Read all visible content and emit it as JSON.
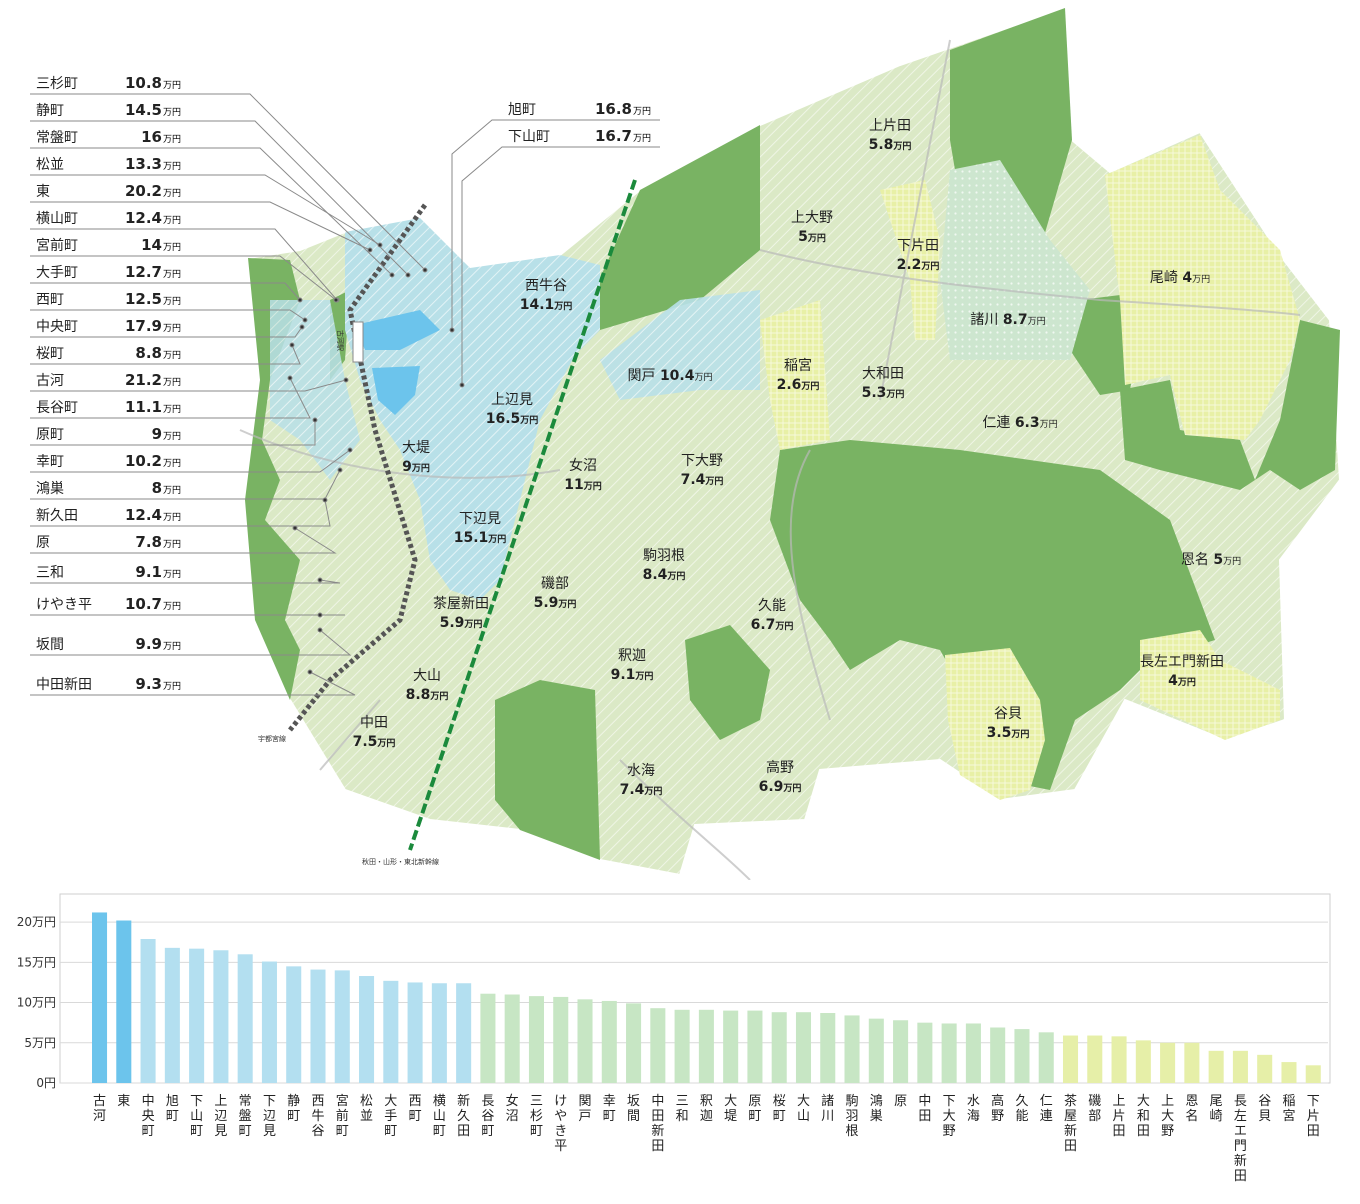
{
  "unit": "万円",
  "colors": {
    "green_dark": "#79b363",
    "green_light": "#dbe9c6",
    "yellow": "#e8f0a6",
    "blue_light": "#b8e0e8",
    "blue": "#6cc4ec",
    "line": "#9a9a9a"
  },
  "map_labels": [
    {
      "name": "上片田",
      "value": "5.8"
    },
    {
      "name": "上大野",
      "value": "5"
    },
    {
      "name": "下片田",
      "value": "2.2"
    },
    {
      "name": "尾崎",
      "value": "4"
    },
    {
      "name": "諸川",
      "value": "8.7"
    },
    {
      "name": "稲宮",
      "value": "2.6"
    },
    {
      "name": "大和田",
      "value": "5.3"
    },
    {
      "name": "仁連",
      "value": "6.3"
    },
    {
      "name": "西牛谷",
      "value": "14.1"
    },
    {
      "name": "関戸",
      "value": "10.4"
    },
    {
      "name": "上辺見",
      "value": "16.5"
    },
    {
      "name": "大堤",
      "value": "9"
    },
    {
      "name": "女沼",
      "value": "11"
    },
    {
      "name": "下大野",
      "value": "7.4"
    },
    {
      "name": "下辺見",
      "value": "15.1"
    },
    {
      "name": "駒羽根",
      "value": "8.4"
    },
    {
      "name": "磯部",
      "value": "5.9"
    },
    {
      "name": "茶屋新田",
      "value": "5.9"
    },
    {
      "name": "久能",
      "value": "6.7"
    },
    {
      "name": "恩名",
      "value": "5"
    },
    {
      "name": "釈迦",
      "value": "9.1"
    },
    {
      "name": "大山",
      "value": "8.8"
    },
    {
      "name": "中田",
      "value": "7.5"
    },
    {
      "name": "長左エ門新田",
      "value": "4"
    },
    {
      "name": "谷貝",
      "value": "3.5"
    },
    {
      "name": "水海",
      "value": "7.4"
    },
    {
      "name": "高野",
      "value": "6.9"
    }
  ],
  "side_labels": [
    {
      "name": "三杉町",
      "value": "10.8"
    },
    {
      "name": "静町",
      "value": "14.5"
    },
    {
      "name": "常盤町",
      "value": "16"
    },
    {
      "name": "松並",
      "value": "13.3"
    },
    {
      "name": "東",
      "value": "20.2"
    },
    {
      "name": "横山町",
      "value": "12.4"
    },
    {
      "name": "宮前町",
      "value": "14"
    },
    {
      "name": "大手町",
      "value": "12.7"
    },
    {
      "name": "西町",
      "value": "12.5"
    },
    {
      "name": "中央町",
      "value": "17.9"
    },
    {
      "name": "桜町",
      "value": "8.8"
    },
    {
      "name": "古河",
      "value": "21.2"
    },
    {
      "name": "長谷町",
      "value": "11.1"
    },
    {
      "name": "原町",
      "value": "9"
    },
    {
      "name": "幸町",
      "value": "10.2"
    },
    {
      "name": "鴻巣",
      "value": "8"
    },
    {
      "name": "新久田",
      "value": "12.4"
    },
    {
      "name": "原",
      "value": "7.8"
    },
    {
      "name": "三和",
      "value": "9.1"
    },
    {
      "name": "けやき平",
      "value": "10.7"
    },
    {
      "name": "坂間",
      "value": "9.9"
    },
    {
      "name": "中田新田",
      "value": "9.3"
    }
  ],
  "top_labels": [
    {
      "name": "旭町",
      "value": "16.8"
    },
    {
      "name": "下山町",
      "value": "16.7"
    }
  ],
  "rail_labels": {
    "utsunomiya": "宇都宮線",
    "shinkansen": "秋田・山形・東北新幹線",
    "station": "古河駅"
  },
  "chart_data": {
    "type": "bar",
    "categories": [
      "古河",
      "東",
      "中央町",
      "旭町",
      "下山町",
      "上辺見",
      "常盤町",
      "下辺見",
      "静町",
      "西牛谷",
      "宮前町",
      "松並",
      "大手町",
      "西町",
      "横山町",
      "新久田",
      "長谷町",
      "女沼",
      "三杉町",
      "けやき平",
      "関戸",
      "幸町",
      "坂間",
      "中田新田",
      "三和",
      "釈迦",
      "大堤",
      "原町",
      "桜町",
      "大山",
      "諸川",
      "駒羽根",
      "鴻巣",
      "原",
      "中田",
      "下大野",
      "水海",
      "高野",
      "久能",
      "仁連",
      "茶屋新田",
      "磯部",
      "上片田",
      "大和田",
      "上大野",
      "恩名",
      "尾崎",
      "長左エ門新田",
      "谷貝",
      "稲宮",
      "下片田"
    ],
    "values": [
      21.2,
      20.2,
      17.9,
      16.8,
      16.7,
      16.5,
      16,
      15.1,
      14.5,
      14.1,
      14,
      13.3,
      12.7,
      12.5,
      12.4,
      12.4,
      11.1,
      11,
      10.8,
      10.7,
      10.4,
      10.2,
      9.9,
      9.3,
      9.1,
      9.1,
      9,
      9,
      8.8,
      8.8,
      8.7,
      8.4,
      8,
      7.8,
      7.5,
      7.4,
      7.4,
      6.9,
      6.7,
      6.3,
      5.9,
      5.9,
      5.8,
      5.3,
      5,
      5,
      4,
      4,
      3.5,
      2.6,
      2.2
    ],
    "yticks": [
      "0円",
      "5万円",
      "10万円",
      "15万円",
      "20万円"
    ],
    "ytick_values": [
      0,
      5,
      10,
      15,
      20
    ],
    "ylim": [
      0,
      22
    ],
    "grid": true,
    "colors": [
      "#6cc4ec",
      "#b3dff0",
      "#c7e6c4",
      "#e6efa8"
    ]
  }
}
